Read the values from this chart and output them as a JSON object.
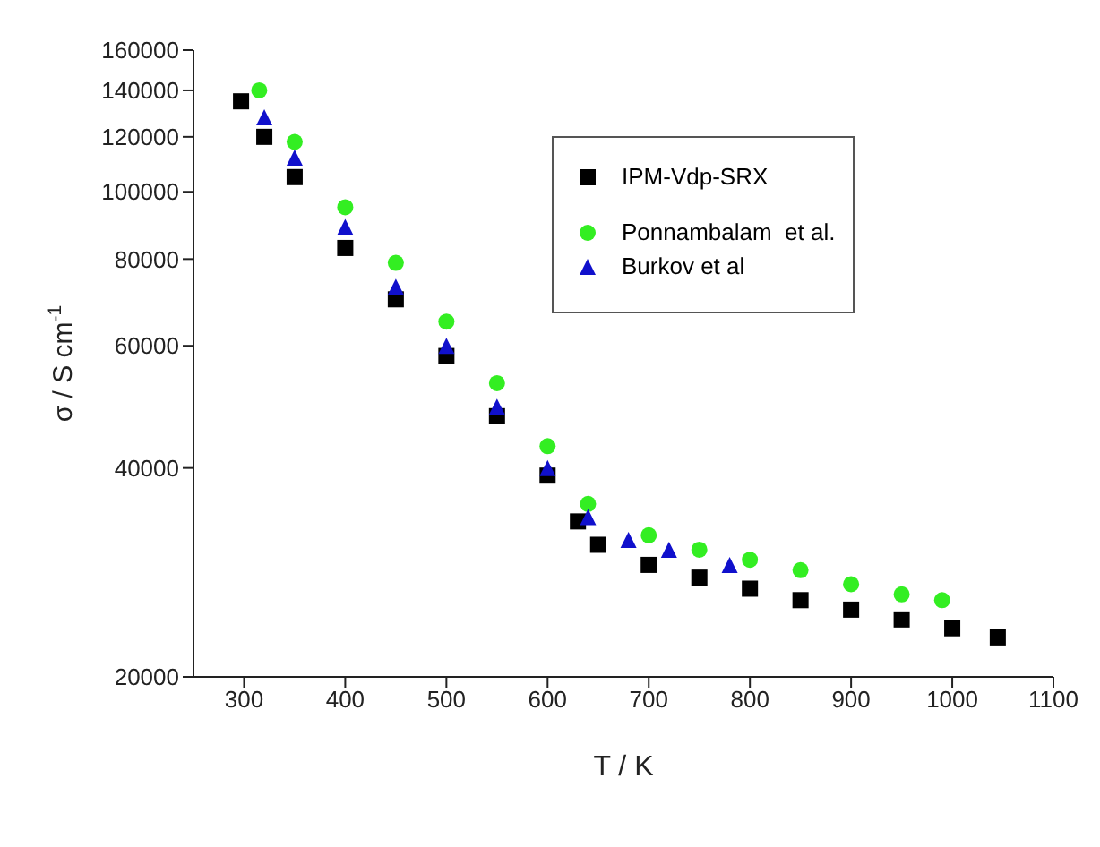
{
  "chart_data": {
    "type": "scatter",
    "xlabel": "T / K",
    "ylabel": "σ / S cm$^{-1}$",
    "log": "y",
    "xlim": [
      250,
      1100
    ],
    "xticks": [
      300,
      400,
      500,
      600,
      700,
      800,
      900,
      1000,
      1100
    ],
    "ylim": [
      20000,
      160000
    ],
    "yticks": [
      20000,
      40000,
      60000,
      80000,
      100000,
      120000,
      140000,
      160000
    ],
    "grid": false,
    "legend": "top right",
    "series": [
      {
        "name": "IPM-Vdp-SRX",
        "color": "#000000",
        "marker": "square",
        "x": [
          297,
          320,
          350,
          400,
          450,
          500,
          550,
          600,
          630,
          650,
          700,
          750,
          800,
          850,
          900,
          950,
          1000,
          1045
        ],
        "values": [
          135000,
          120000,
          105000,
          83000,
          70000,
          58000,
          47500,
          39000,
          33500,
          31000,
          29000,
          27800,
          26800,
          25800,
          25000,
          24200,
          23500,
          22800
        ]
      },
      {
        "name": "Ponnambalam  et al.",
        "color": "#33ee22",
        "marker": "circle",
        "x": [
          315,
          350,
          400,
          450,
          500,
          550,
          600,
          640,
          700,
          750,
          800,
          850,
          900,
          950,
          990
        ],
        "values": [
          140000,
          118000,
          95000,
          79000,
          65000,
          53000,
          43000,
          35500,
          32000,
          30500,
          29500,
          28500,
          27200,
          26300,
          25800
        ]
      },
      {
        "name": "Burkov et al",
        "color": "#1010cc",
        "marker": "triangle",
        "x": [
          320,
          350,
          400,
          450,
          500,
          550,
          600,
          640,
          680,
          720,
          780
        ],
        "values": [
          128000,
          112000,
          89000,
          73000,
          60000,
          49000,
          40000,
          34000,
          31500,
          30500,
          29000
        ]
      }
    ]
  }
}
